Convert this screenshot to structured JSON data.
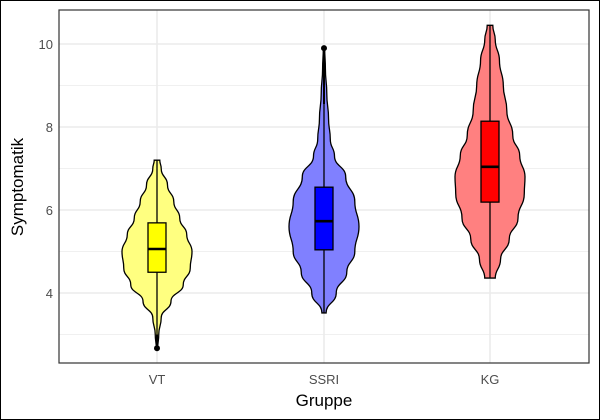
{
  "chart_data": {
    "type": "violin",
    "title": "",
    "xlabel": "Gruppe",
    "ylabel": "Symptomatik",
    "categories": [
      "VT",
      "SSRI",
      "KG"
    ],
    "ylim": [
      2.3,
      10.8
    ],
    "yticks": [
      4,
      6,
      8,
      10
    ],
    "grid": true,
    "legend": "none",
    "series": [
      {
        "name": "VT",
        "fill": "#ffff80",
        "box_fill": "#ffff00",
        "min": 2.67,
        "max": 7.2,
        "q1": 4.5,
        "median": 5.06,
        "q3": 5.69,
        "whisker_low": 3.0,
        "whisker_high": 7.2,
        "outliers": [
          2.67
        ],
        "profile": [
          [
            2.67,
            0.02
          ],
          [
            3.0,
            0.05
          ],
          [
            3.4,
            0.12
          ],
          [
            3.8,
            0.4
          ],
          [
            4.2,
            0.75
          ],
          [
            4.6,
            0.95
          ],
          [
            5.0,
            1.0
          ],
          [
            5.4,
            0.85
          ],
          [
            5.8,
            0.65
          ],
          [
            6.2,
            0.48
          ],
          [
            6.6,
            0.3
          ],
          [
            7.0,
            0.12
          ],
          [
            7.2,
            0.08
          ]
        ]
      },
      {
        "name": "SSRI",
        "fill": "#8080ff",
        "box_fill": "#0000ff",
        "min": 3.52,
        "max": 9.9,
        "q1": 5.04,
        "median": 5.73,
        "q3": 6.55,
        "whisker_low": 3.52,
        "whisker_high": 8.55,
        "outliers": [
          9.9
        ],
        "profile": [
          [
            3.52,
            0.06
          ],
          [
            4.0,
            0.35
          ],
          [
            4.5,
            0.65
          ],
          [
            5.0,
            0.88
          ],
          [
            5.6,
            1.0
          ],
          [
            6.2,
            0.88
          ],
          [
            6.8,
            0.62
          ],
          [
            7.3,
            0.3
          ],
          [
            7.7,
            0.18
          ],
          [
            8.2,
            0.13
          ],
          [
            8.8,
            0.08
          ],
          [
            9.4,
            0.04
          ],
          [
            9.9,
            0.02
          ]
        ]
      },
      {
        "name": "KG",
        "fill": "#ff8080",
        "box_fill": "#ff0000",
        "min": 4.36,
        "max": 10.45,
        "q1": 6.19,
        "median": 7.04,
        "q3": 8.14,
        "whisker_low": 4.36,
        "whisker_high": 10.45,
        "outliers": [],
        "profile": [
          [
            4.36,
            0.15
          ],
          [
            4.8,
            0.3
          ],
          [
            5.3,
            0.55
          ],
          [
            5.8,
            0.8
          ],
          [
            6.4,
            0.98
          ],
          [
            6.8,
            1.0
          ],
          [
            7.3,
            0.85
          ],
          [
            7.8,
            0.65
          ],
          [
            8.4,
            0.48
          ],
          [
            9.0,
            0.38
          ],
          [
            9.6,
            0.27
          ],
          [
            10.1,
            0.15
          ],
          [
            10.45,
            0.08
          ]
        ]
      }
    ]
  }
}
